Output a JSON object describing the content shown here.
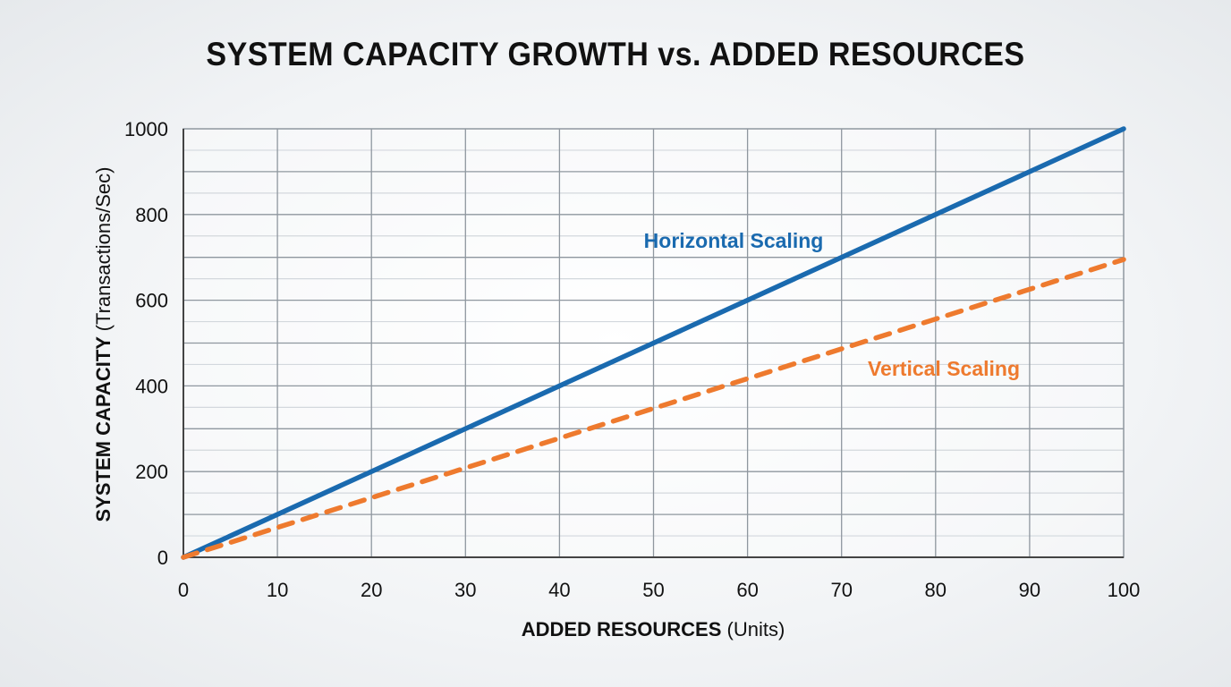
{
  "chart_data": {
    "type": "line",
    "title": "SYSTEM CAPACITY GROWTH vs. ADDED RESOURCES",
    "xlabel_bold": "ADDED RESOURCES",
    "xlabel_unit": "(Units)",
    "ylabel_bold": "SYSTEM CAPACITY",
    "ylabel_unit": "(Transactions/Sec)",
    "xlim": [
      0,
      100
    ],
    "ylim": [
      0,
      1000
    ],
    "xticks": [
      0,
      10,
      20,
      30,
      40,
      50,
      60,
      70,
      80,
      90,
      100
    ],
    "yticks": [
      0,
      200,
      400,
      600,
      800,
      1000
    ],
    "grid": true,
    "series": [
      {
        "name": "Horizontal Scaling",
        "color": "#1a6aaf",
        "style": "solid",
        "x": [
          0,
          100
        ],
        "y": [
          0,
          1000
        ]
      },
      {
        "name": "Vertical Scaling",
        "color": "#ee7a2e",
        "style": "dashed",
        "x": [
          0,
          100
        ],
        "y": [
          0,
          695
        ]
      }
    ]
  }
}
